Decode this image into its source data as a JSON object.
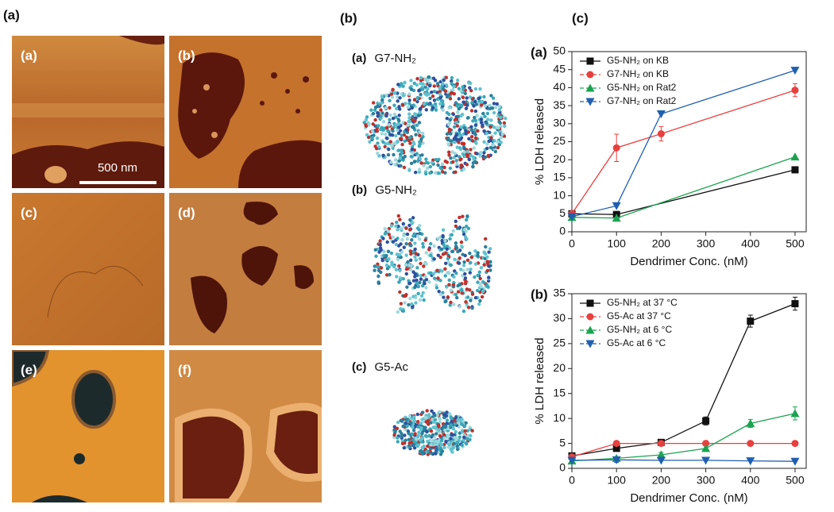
{
  "panel_labels": [
    "(a)",
    "(b)",
    "(c)"
  ],
  "afm": {
    "labels": [
      "(a)",
      "(b)",
      "(c)",
      "(d)",
      "(e)",
      "(f)"
    ],
    "scale_bar": "500 nm"
  },
  "molecules": [
    {
      "label": "(a)",
      "name": "G7-NH₂"
    },
    {
      "label": "(b)",
      "name": "G5-NH₂"
    },
    {
      "label": "(c)",
      "name": "G5-Ac"
    }
  ],
  "chart_data": [
    {
      "type": "line",
      "panel_label": "(a)",
      "x_label": "Dendrimer Conc. (nM)",
      "y_label": "% LDH released",
      "xlim": [
        0,
        525
      ],
      "xticks": [
        0,
        100,
        200,
        300,
        400,
        500
      ],
      "ylim": [
        0,
        50
      ],
      "yticks": [
        0,
        5,
        10,
        15,
        20,
        25,
        30,
        35,
        40,
        45,
        50
      ],
      "legend": "upper left",
      "series": [
        {
          "name": "G5-NH₂ on KB",
          "color": "#111111",
          "marker": "square",
          "x": [
            0,
            100,
            500
          ],
          "values": [
            5,
            4.8,
            17.2
          ],
          "errors": [
            null,
            null,
            0.8
          ]
        },
        {
          "name": "G7-NH₂ on KB",
          "color": "#e8403f",
          "marker": "circle",
          "x": [
            0,
            100,
            200,
            500
          ],
          "values": [
            5,
            23.3,
            27.2,
            39.3
          ],
          "errors": [
            null,
            3.8,
            2,
            1.8
          ]
        },
        {
          "name": "G5-NH₂ on Rat2",
          "color": "#1aa350",
          "marker": "triangle-up",
          "x": [
            0,
            100,
            500
          ],
          "values": [
            4,
            3.8,
            20.8
          ],
          "errors": [
            null,
            null,
            null
          ]
        },
        {
          "name": "G7-NH₂ on Rat2",
          "color": "#1f5fb0",
          "marker": "triangle-down",
          "x": [
            0,
            100,
            200,
            500
          ],
          "values": [
            4.2,
            7.2,
            32.7,
            44.8
          ],
          "errors": [
            null,
            null,
            null,
            null
          ]
        }
      ]
    },
    {
      "type": "line",
      "panel_label": "(b)",
      "x_label": "Dendrimer Conc. (nM)",
      "y_label": "% LDH released",
      "xlim": [
        0,
        525
      ],
      "xticks": [
        0,
        100,
        200,
        300,
        400,
        500
      ],
      "ylim": [
        0,
        35
      ],
      "yticks": [
        0,
        5,
        10,
        15,
        20,
        25,
        30,
        35
      ],
      "legend": "upper left",
      "series": [
        {
          "name": "G5-NH₂ at 37 °C",
          "color": "#111111",
          "marker": "square",
          "x": [
            0,
            100,
            200,
            300,
            400,
            500
          ],
          "values": [
            2.5,
            4,
            5.2,
            9.5,
            29.5,
            33
          ],
          "errors": [
            null,
            null,
            null,
            0.8,
            1.2,
            1.3
          ]
        },
        {
          "name": "G5-Ac at 37 °C",
          "color": "#e8403f",
          "marker": "circle",
          "x": [
            0,
            100,
            200,
            300,
            400,
            500
          ],
          "values": [
            2.3,
            5,
            5,
            5,
            5,
            5
          ],
          "errors": [
            null,
            null,
            null,
            null,
            null,
            null
          ]
        },
        {
          "name": "G5-NH₂ at 6 °C",
          "color": "#1aa350",
          "marker": "triangle-up",
          "x": [
            0,
            100,
            200,
            300,
            400,
            500
          ],
          "values": [
            1.5,
            2,
            2.7,
            4,
            9,
            11
          ],
          "errors": [
            null,
            null,
            0.5,
            null,
            0.8,
            1.3
          ]
        },
        {
          "name": "G5-Ac at 6 °C",
          "color": "#1f5fb0",
          "marker": "triangle-down",
          "x": [
            0,
            100,
            200,
            300,
            400,
            500
          ],
          "values": [
            1.6,
            1.7,
            1.6,
            1.6,
            1.5,
            1.4
          ],
          "errors": [
            null,
            0.5,
            null,
            null,
            null,
            null
          ]
        }
      ]
    }
  ]
}
